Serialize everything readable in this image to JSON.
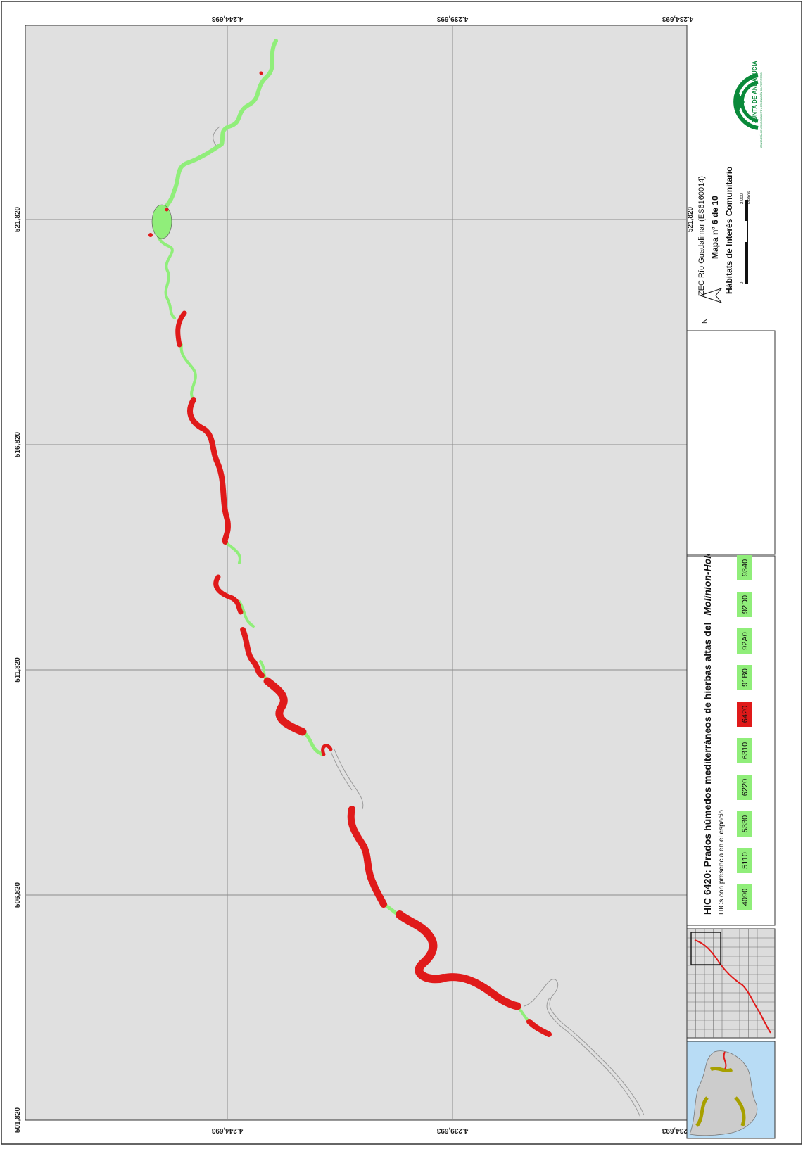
{
  "map": {
    "background": "#e0e0e0",
    "grid_color": "#8c8c8c",
    "habitat_present_color": "#90ee7a",
    "habitat_selected_color": "#e01a1a",
    "x_coords": [
      "501,820",
      "506,820",
      "511,820",
      "516,820",
      "521,820"
    ],
    "y_coords": [
      "4.234,693",
      "4.239,693",
      "4.244,693"
    ]
  },
  "legend": {
    "title_prefix": "HIC 6420: Prados húmedos mediterráneos de hierbas altas del",
    "title_italic": "Molinion-Holoschoenion",
    "subtitle": "HICs con presencia en el espacio",
    "codes": [
      {
        "code": "4090",
        "selected": false
      },
      {
        "code": "5110",
        "selected": false
      },
      {
        "code": "5330",
        "selected": false
      },
      {
        "code": "6220",
        "selected": false
      },
      {
        "code": "6310",
        "selected": false
      },
      {
        "code": "6420",
        "selected": true
      },
      {
        "code": "91B0",
        "selected": false
      },
      {
        "code": "92A0",
        "selected": false
      },
      {
        "code": "92D0",
        "selected": false
      },
      {
        "code": "9340",
        "selected": false
      }
    ]
  },
  "title_block": {
    "line1": "ZEC Río Guadalimar (ES6160014)",
    "line2": "Mapa nº 6 de 10",
    "line3": "Hábitats de Interés Comunitario",
    "north_label": "N",
    "scale_start": "0",
    "scale_end": "2.000",
    "scale_unit": "Metros",
    "logo_text": "JUNTA DE ANDALUCIA",
    "logo_subtext": "CONSEJERÍA DE MEDIO AMBIENTE Y ORDENACIÓN DEL TERRITORIO"
  }
}
